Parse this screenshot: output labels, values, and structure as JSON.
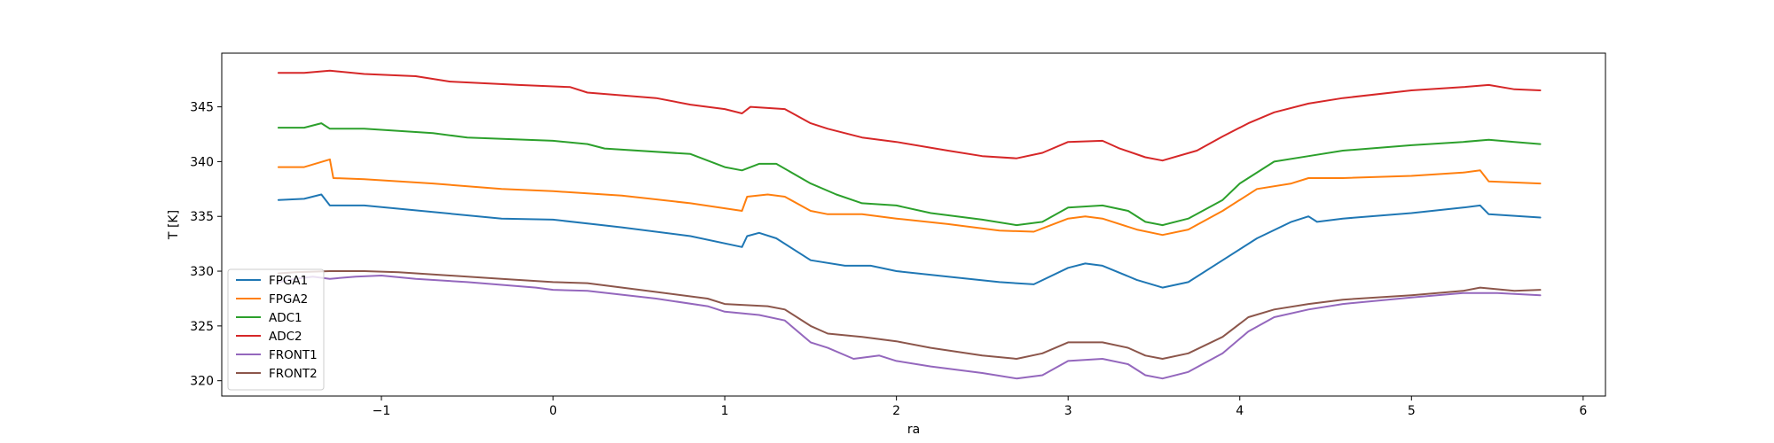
{
  "chart_data": {
    "type": "line",
    "title": "",
    "xlabel": "ra",
    "ylabel": "T [K]",
    "xlim": [
      -1.93,
      6.13
    ],
    "ylim": [
      318.6,
      349.9
    ],
    "xticks": [
      -1,
      0,
      1,
      2,
      3,
      4,
      5,
      6
    ],
    "xtick_labels": [
      "−1",
      "0",
      "1",
      "2",
      "3",
      "4",
      "5",
      "6"
    ],
    "yticks": [
      320,
      325,
      330,
      335,
      340,
      345
    ],
    "ytick_labels": [
      "320",
      "325",
      "330",
      "335",
      "340",
      "345"
    ],
    "grid": false,
    "legend_position": "lower-left",
    "series": [
      {
        "name": "FPGA1",
        "color": "#1f77b4",
        "points": [
          [
            -1.6,
            336.5
          ],
          [
            -1.45,
            336.6
          ],
          [
            -1.35,
            337.0
          ],
          [
            -1.3,
            336.0
          ],
          [
            -1.1,
            336.0
          ],
          [
            -0.7,
            335.4
          ],
          [
            -0.3,
            334.8
          ],
          [
            0.0,
            334.7
          ],
          [
            0.4,
            334.0
          ],
          [
            0.8,
            333.2
          ],
          [
            1.1,
            332.2
          ],
          [
            1.13,
            333.2
          ],
          [
            1.2,
            333.5
          ],
          [
            1.3,
            333.0
          ],
          [
            1.5,
            331.0
          ],
          [
            1.7,
            330.5
          ],
          [
            1.85,
            330.5
          ],
          [
            2.0,
            330.0
          ],
          [
            2.3,
            329.5
          ],
          [
            2.6,
            329.0
          ],
          [
            2.8,
            328.8
          ],
          [
            3.0,
            330.3
          ],
          [
            3.1,
            330.7
          ],
          [
            3.2,
            330.5
          ],
          [
            3.4,
            329.2
          ],
          [
            3.55,
            328.5
          ],
          [
            3.7,
            329.0
          ],
          [
            3.9,
            331.0
          ],
          [
            4.1,
            333.0
          ],
          [
            4.3,
            334.5
          ],
          [
            4.4,
            335.0
          ],
          [
            4.45,
            334.5
          ],
          [
            4.6,
            334.8
          ],
          [
            5.0,
            335.3
          ],
          [
            5.3,
            335.8
          ],
          [
            5.4,
            336.0
          ],
          [
            5.45,
            335.2
          ],
          [
            5.75,
            334.9
          ]
        ]
      },
      {
        "name": "FPGA2",
        "color": "#ff7f0e",
        "points": [
          [
            -1.6,
            339.5
          ],
          [
            -1.45,
            339.5
          ],
          [
            -1.3,
            340.2
          ],
          [
            -1.28,
            338.5
          ],
          [
            -1.1,
            338.4
          ],
          [
            -0.7,
            338.0
          ],
          [
            -0.3,
            337.5
          ],
          [
            0.0,
            337.3
          ],
          [
            0.4,
            336.9
          ],
          [
            0.8,
            336.2
          ],
          [
            1.1,
            335.5
          ],
          [
            1.13,
            336.8
          ],
          [
            1.25,
            337.0
          ],
          [
            1.35,
            336.8
          ],
          [
            1.5,
            335.5
          ],
          [
            1.6,
            335.2
          ],
          [
            1.8,
            335.2
          ],
          [
            2.0,
            334.8
          ],
          [
            2.3,
            334.3
          ],
          [
            2.6,
            333.7
          ],
          [
            2.8,
            333.6
          ],
          [
            3.0,
            334.8
          ],
          [
            3.1,
            335.0
          ],
          [
            3.2,
            334.8
          ],
          [
            3.4,
            333.8
          ],
          [
            3.55,
            333.3
          ],
          [
            3.7,
            333.8
          ],
          [
            3.9,
            335.5
          ],
          [
            4.1,
            337.5
          ],
          [
            4.3,
            338.0
          ],
          [
            4.4,
            338.5
          ],
          [
            4.6,
            338.5
          ],
          [
            5.0,
            338.7
          ],
          [
            5.3,
            339.0
          ],
          [
            5.4,
            339.2
          ],
          [
            5.45,
            338.2
          ],
          [
            5.75,
            338.0
          ]
        ]
      },
      {
        "name": "ADC1",
        "color": "#2ca02c",
        "points": [
          [
            -1.6,
            343.1
          ],
          [
            -1.45,
            343.1
          ],
          [
            -1.35,
            343.5
          ],
          [
            -1.3,
            343.0
          ],
          [
            -1.1,
            343.0
          ],
          [
            -0.7,
            342.6
          ],
          [
            -0.5,
            342.2
          ],
          [
            0.0,
            341.9
          ],
          [
            0.2,
            341.6
          ],
          [
            0.3,
            341.2
          ],
          [
            0.8,
            340.7
          ],
          [
            1.0,
            339.5
          ],
          [
            1.1,
            339.2
          ],
          [
            1.2,
            339.8
          ],
          [
            1.3,
            339.8
          ],
          [
            1.5,
            338.0
          ],
          [
            1.65,
            337.0
          ],
          [
            1.8,
            336.2
          ],
          [
            2.0,
            336.0
          ],
          [
            2.2,
            335.3
          ],
          [
            2.5,
            334.7
          ],
          [
            2.7,
            334.2
          ],
          [
            2.85,
            334.5
          ],
          [
            3.0,
            335.8
          ],
          [
            3.2,
            336.0
          ],
          [
            3.35,
            335.5
          ],
          [
            3.45,
            334.5
          ],
          [
            3.55,
            334.2
          ],
          [
            3.7,
            334.8
          ],
          [
            3.9,
            336.5
          ],
          [
            4.0,
            338.0
          ],
          [
            4.2,
            340.0
          ],
          [
            4.4,
            340.5
          ],
          [
            4.6,
            341.0
          ],
          [
            5.0,
            341.5
          ],
          [
            5.3,
            341.8
          ],
          [
            5.45,
            342.0
          ],
          [
            5.6,
            341.8
          ],
          [
            5.75,
            341.6
          ]
        ]
      },
      {
        "name": "ADC2",
        "color": "#d62728",
        "points": [
          [
            -1.6,
            348.1
          ],
          [
            -1.45,
            348.1
          ],
          [
            -1.3,
            348.3
          ],
          [
            -1.1,
            348.0
          ],
          [
            -0.8,
            347.8
          ],
          [
            -0.6,
            347.3
          ],
          [
            -0.2,
            347.0
          ],
          [
            0.1,
            346.8
          ],
          [
            0.2,
            346.3
          ],
          [
            0.6,
            345.8
          ],
          [
            0.8,
            345.2
          ],
          [
            1.0,
            344.8
          ],
          [
            1.1,
            344.4
          ],
          [
            1.15,
            345.0
          ],
          [
            1.35,
            344.8
          ],
          [
            1.5,
            343.5
          ],
          [
            1.6,
            343.0
          ],
          [
            1.8,
            342.2
          ],
          [
            2.0,
            341.8
          ],
          [
            2.3,
            341.0
          ],
          [
            2.5,
            340.5
          ],
          [
            2.7,
            340.3
          ],
          [
            2.85,
            340.8
          ],
          [
            3.0,
            341.8
          ],
          [
            3.2,
            341.9
          ],
          [
            3.3,
            341.2
          ],
          [
            3.45,
            340.4
          ],
          [
            3.55,
            340.1
          ],
          [
            3.75,
            341.0
          ],
          [
            3.9,
            342.3
          ],
          [
            4.05,
            343.5
          ],
          [
            4.2,
            344.5
          ],
          [
            4.4,
            345.3
          ],
          [
            4.6,
            345.8
          ],
          [
            5.0,
            346.5
          ],
          [
            5.3,
            346.8
          ],
          [
            5.45,
            347.0
          ],
          [
            5.6,
            346.6
          ],
          [
            5.75,
            346.5
          ]
        ]
      },
      {
        "name": "FRONT1",
        "color": "#9467bd",
        "points": [
          [
            -1.6,
            329.0
          ],
          [
            -1.5,
            329.3
          ],
          [
            -1.4,
            329.5
          ],
          [
            -1.3,
            329.3
          ],
          [
            -1.15,
            329.5
          ],
          [
            -1.0,
            329.6
          ],
          [
            -0.8,
            329.3
          ],
          [
            -0.5,
            329.0
          ],
          [
            -0.1,
            328.5
          ],
          [
            0.0,
            328.3
          ],
          [
            0.2,
            328.2
          ],
          [
            0.6,
            327.5
          ],
          [
            0.9,
            326.8
          ],
          [
            1.0,
            326.3
          ],
          [
            1.2,
            326.0
          ],
          [
            1.35,
            325.5
          ],
          [
            1.5,
            323.5
          ],
          [
            1.6,
            323.0
          ],
          [
            1.75,
            322.0
          ],
          [
            1.9,
            322.3
          ],
          [
            2.0,
            321.8
          ],
          [
            2.2,
            321.3
          ],
          [
            2.5,
            320.7
          ],
          [
            2.7,
            320.2
          ],
          [
            2.85,
            320.5
          ],
          [
            3.0,
            321.8
          ],
          [
            3.2,
            322.0
          ],
          [
            3.35,
            321.5
          ],
          [
            3.45,
            320.5
          ],
          [
            3.55,
            320.2
          ],
          [
            3.7,
            320.8
          ],
          [
            3.9,
            322.5
          ],
          [
            4.05,
            324.5
          ],
          [
            4.2,
            325.8
          ],
          [
            4.4,
            326.5
          ],
          [
            4.6,
            327.0
          ],
          [
            5.0,
            327.6
          ],
          [
            5.3,
            328.0
          ],
          [
            5.5,
            328.0
          ],
          [
            5.75,
            327.8
          ]
        ]
      },
      {
        "name": "FRONT2",
        "color": "#8c564b",
        "points": [
          [
            -1.6,
            329.8
          ],
          [
            -1.5,
            329.9
          ],
          [
            -1.3,
            330.0
          ],
          [
            -1.1,
            330.0
          ],
          [
            -0.9,
            329.9
          ],
          [
            -0.6,
            329.6
          ],
          [
            -0.3,
            329.3
          ],
          [
            0.0,
            329.0
          ],
          [
            0.2,
            328.9
          ],
          [
            0.6,
            328.1
          ],
          [
            0.9,
            327.5
          ],
          [
            1.0,
            327.0
          ],
          [
            1.25,
            326.8
          ],
          [
            1.35,
            326.5
          ],
          [
            1.5,
            325.0
          ],
          [
            1.6,
            324.3
          ],
          [
            1.8,
            324.0
          ],
          [
            2.0,
            323.6
          ],
          [
            2.2,
            323.0
          ],
          [
            2.5,
            322.3
          ],
          [
            2.7,
            322.0
          ],
          [
            2.85,
            322.5
          ],
          [
            3.0,
            323.5
          ],
          [
            3.2,
            323.5
          ],
          [
            3.35,
            323.0
          ],
          [
            3.45,
            322.3
          ],
          [
            3.55,
            322.0
          ],
          [
            3.7,
            322.5
          ],
          [
            3.9,
            324.0
          ],
          [
            4.05,
            325.8
          ],
          [
            4.2,
            326.5
          ],
          [
            4.4,
            327.0
          ],
          [
            4.6,
            327.4
          ],
          [
            5.0,
            327.8
          ],
          [
            5.3,
            328.2
          ],
          [
            5.4,
            328.5
          ],
          [
            5.6,
            328.2
          ],
          [
            5.75,
            328.3
          ]
        ]
      }
    ]
  }
}
